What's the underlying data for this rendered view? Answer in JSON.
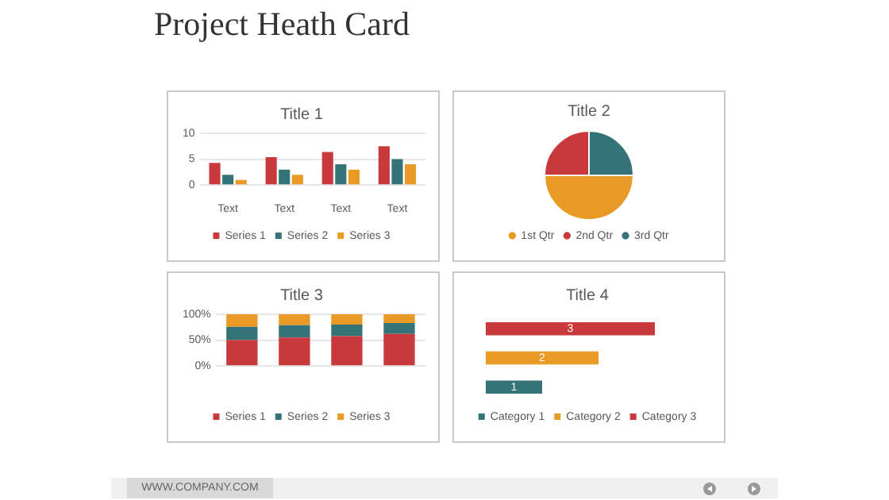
{
  "chart_data": [
    {
      "type": "other",
      "title": "Project Heath Card",
      "annotations": [
        "WWW.COMPANY.COM"
      ]
    },
    {
      "type": "bar",
      "title": "Title 1",
      "categories": [
        "Text",
        "Text",
        "Text",
        "Text"
      ],
      "series": [
        {
          "name": "Series 1",
          "color": "#c9393b",
          "values": [
            4.3,
            5.4,
            6.4,
            7.5
          ]
        },
        {
          "name": "Series 2",
          "color": "#347478",
          "values": [
            2,
            3,
            4,
            5
          ]
        },
        {
          "name": "Series 3",
          "color": "#e99a24",
          "values": [
            1,
            2,
            3,
            4
          ]
        }
      ],
      "ylim": [
        0,
        10
      ],
      "yticks": [
        0,
        5,
        10
      ],
      "grid": "y",
      "legend": "bottom"
    },
    {
      "type": "pie",
      "title": "Title 2",
      "categories": [
        "1st Qtr",
        "2nd Qtr",
        "3rd Qtr"
      ],
      "values": [
        50,
        25,
        25
      ],
      "colors": [
        "#e99a24",
        "#c9393b",
        "#347478"
      ],
      "legend": "bottom"
    },
    {
      "type": "bar",
      "title": "Title 3",
      "categories": [
        null,
        null,
        null,
        null
      ],
      "stacked": true,
      "series": [
        {
          "name": "Series 1",
          "color": "#c9393b",
          "values": [
            50,
            55,
            58,
            62
          ]
        },
        {
          "name": "Series 2",
          "color": "#347478",
          "values": [
            26,
            24,
            22,
            21
          ]
        },
        {
          "name": "Series 3",
          "color": "#e99a24",
          "values": [
            24,
            21,
            20,
            17
          ]
        }
      ],
      "ylim": [
        0,
        100
      ],
      "yticks": [
        {
          "value": 0,
          "label": "0%"
        },
        {
          "value": 50,
          "label": "50%"
        },
        {
          "value": 100,
          "label": "100%"
        }
      ],
      "grid": "y",
      "legend": "bottom"
    },
    {
      "type": "bar",
      "title": "Title 4",
      "orientation": "horizontal",
      "stacked": true,
      "categories": [
        null,
        null,
        null
      ],
      "series": [
        {
          "name": "Category 1",
          "color": "#347478",
          "values": [
            null,
            null,
            1
          ]
        },
        {
          "name": "Category 2",
          "color": "#e99a24",
          "values": [
            null,
            2,
            null
          ]
        },
        {
          "name": "Category 3",
          "color": "#c9393b",
          "values": [
            3,
            null,
            null
          ]
        }
      ],
      "data_labels": true,
      "legend": "bottom"
    }
  ]
}
